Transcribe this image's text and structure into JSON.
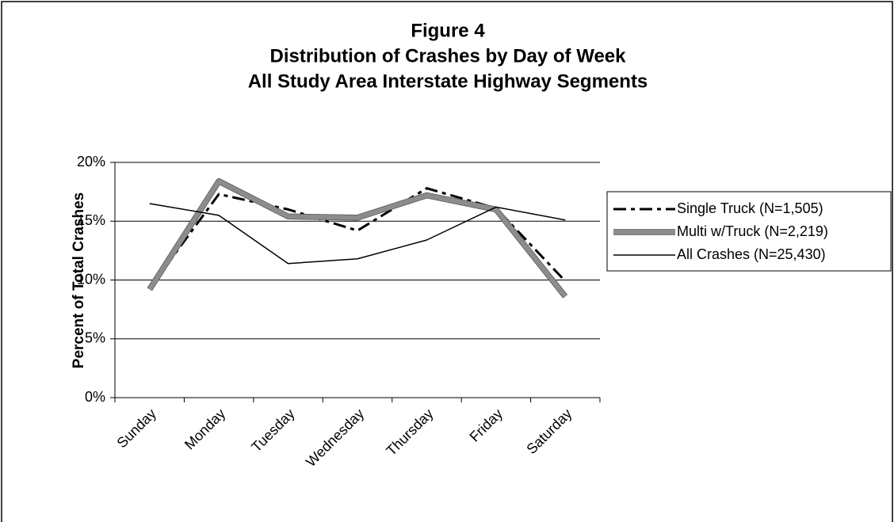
{
  "chart_data": {
    "type": "line",
    "title": [
      "Figure 4",
      "Distribution of Crashes by Day of Week",
      "All Study Area Interstate Highway Segments"
    ],
    "y_label": "Percent of Total Crashes",
    "categories": [
      "Sunday",
      "Monday",
      "Tuesday",
      "Wednesday",
      "Thursday",
      "Friday",
      "Saturday"
    ],
    "series": [
      {
        "name": "Single Truck (N=1,505)",
        "color": "#000000",
        "values": [
          9.3,
          17.3,
          16.0,
          14.2,
          17.8,
          16.1,
          9.9
        ]
      },
      {
        "name": "Multi w/Truck (N=2,219)",
        "color": "#8c8c8c",
        "values": [
          9.2,
          18.4,
          15.4,
          15.3,
          17.2,
          16.0,
          8.6
        ]
      },
      {
        "name": "All Crashes (N=25,430)",
        "color": "#000000",
        "values": [
          16.5,
          15.5,
          11.4,
          11.8,
          13.4,
          16.2,
          15.1
        ]
      }
    ],
    "ylim": [
      0,
      20
    ],
    "yticks": [
      {
        "value": 0,
        "label": "0%"
      },
      {
        "value": 5,
        "label": "5%"
      },
      {
        "value": 10,
        "label": "10%"
      },
      {
        "value": 15,
        "label": "15%"
      },
      {
        "value": 20,
        "label": "20%"
      }
    ],
    "grid": true,
    "legend": "right"
  }
}
